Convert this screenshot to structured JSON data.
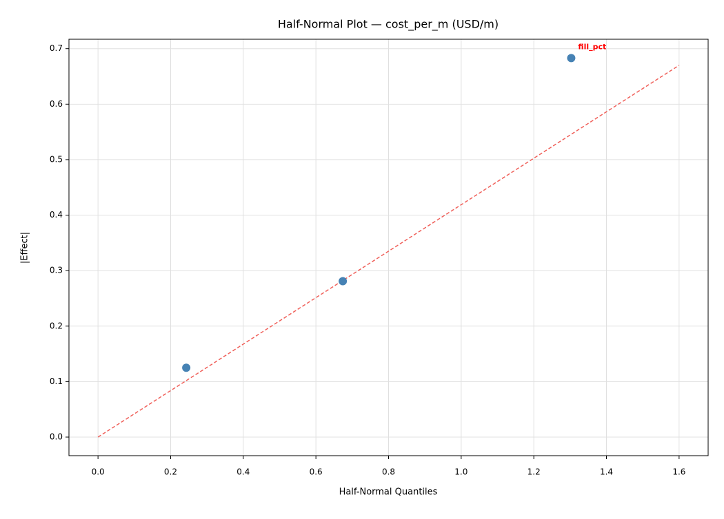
{
  "chart_data": {
    "type": "scatter",
    "title": "Half-Normal Plot — cost_per_m (USD/m)",
    "x_label": "Half-Normal Quantiles",
    "y_label": "|Effect|",
    "series": [
      {
        "x": [
          0.243,
          0.674,
          1.303
        ],
        "values": [
          0.125,
          0.281,
          0.683
        ],
        "color": "#4682b4",
        "labels": [
          null,
          null,
          "fill_pct"
        ],
        "label_color": "#ff0000"
      }
    ],
    "reference_line": {
      "x": [
        0,
        1.6
      ],
      "values": [
        0,
        0.67
      ],
      "color": "#f0605a"
    },
    "xlim": [
      -0.08,
      1.68
    ],
    "ylim": [
      -0.0335,
      0.717
    ],
    "xticks": [
      {
        "value": 0,
        "label": "0.0"
      },
      0.2,
      0.4,
      0.6,
      0.8,
      {
        "value": 1,
        "label": "1.0"
      },
      1.2,
      1.4,
      1.6
    ],
    "yticks": [
      {
        "value": 0,
        "label": "0.0"
      },
      0.1,
      0.2,
      0.3,
      0.4,
      0.5,
      0.6,
      0.7
    ],
    "grid": true
  }
}
